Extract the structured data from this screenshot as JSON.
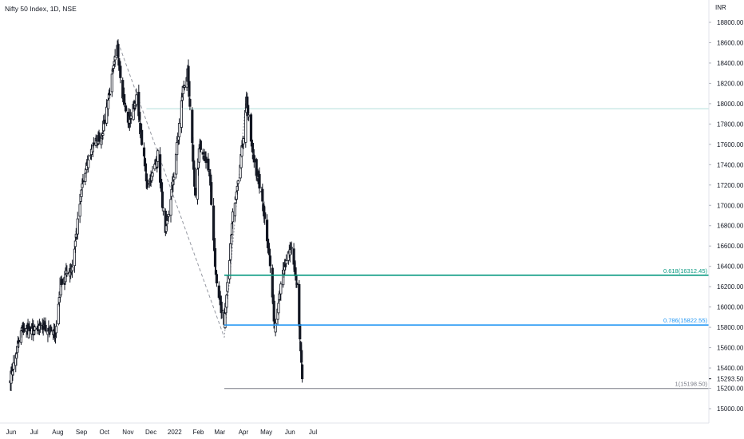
{
  "header": {
    "title": "Nifty 50 Index, 1D, NSE"
  },
  "chart_data": {
    "type": "candlestick",
    "title": "Nifty 50 Index, 1D, NSE",
    "currency": "INR",
    "ylim": [
      15000,
      18900
    ],
    "y_ticks": [
      15000,
      15200,
      15400,
      15600,
      15800,
      16000,
      16200,
      16400,
      16600,
      16800,
      17000,
      17200,
      17400,
      17600,
      17800,
      18000,
      18200,
      18400,
      18600,
      18800
    ],
    "y_tick_labels": [
      "15000.00",
      "15200.00",
      "15400.00",
      "15600.00",
      "15800.00",
      "16000.00",
      "16200.00",
      "16400.00",
      "16600.00",
      "16800.00",
      "17000.00",
      "17200.00",
      "17400.00",
      "17600.00",
      "17800.00",
      "18000.00",
      "18200.00",
      "18400.00",
      "18600.00",
      "18800.00"
    ],
    "x_labels": [
      "Jun",
      "Jul",
      "Aug",
      "Sep",
      "Oct",
      "Nov",
      "Dec",
      "2022",
      "Feb",
      "Mar",
      "Apr",
      "May",
      "Jun",
      "Jul"
    ],
    "last_price_label": "15293.50",
    "last_price": 15293.5,
    "horizontal_reference_line": 17950,
    "fib_levels": [
      {
        "label": "0.618(16312.45)",
        "value": 16312.45,
        "color": "#089981"
      },
      {
        "label": "0.786(15822.55)",
        "value": 15822.55,
        "color": "#2196f3"
      },
      {
        "label": "1(15198.50)",
        "value": 15198.5,
        "color": "#787b86"
      }
    ],
    "trend_line": {
      "from_price": 18604,
      "to_price": 15700
    },
    "projection_line": {
      "from_price": 15700,
      "to_price": 18100
    },
    "anchor_closes": [
      {
        "date": "2021-05-31",
        "price": 15300
      },
      {
        "date": "2021-06-15",
        "price": 15780
      },
      {
        "date": "2021-06-30",
        "price": 15760
      },
      {
        "date": "2021-07-15",
        "price": 15800
      },
      {
        "date": "2021-07-29",
        "price": 15730
      },
      {
        "date": "2021-08-05",
        "price": 16250
      },
      {
        "date": "2021-08-20",
        "price": 16400
      },
      {
        "date": "2021-09-02",
        "price": 17200
      },
      {
        "date": "2021-09-16",
        "price": 17600
      },
      {
        "date": "2021-09-28",
        "price": 17700
      },
      {
        "date": "2021-10-18",
        "price": 18550
      },
      {
        "date": "2021-10-25",
        "price": 18100
      },
      {
        "date": "2021-11-01",
        "price": 17800
      },
      {
        "date": "2021-11-12",
        "price": 18050
      },
      {
        "date": "2021-11-26",
        "price": 17200
      },
      {
        "date": "2021-12-03",
        "price": 17300
      },
      {
        "date": "2021-12-10",
        "price": 17500
      },
      {
        "date": "2021-12-20",
        "price": 16700
      },
      {
        "date": "2021-12-31",
        "price": 17300
      },
      {
        "date": "2022-01-12",
        "price": 18150
      },
      {
        "date": "2022-01-18",
        "price": 18300
      },
      {
        "date": "2022-01-28",
        "price": 17100
      },
      {
        "date": "2022-02-03",
        "price": 17600
      },
      {
        "date": "2022-02-16",
        "price": 17300
      },
      {
        "date": "2022-02-24",
        "price": 16300
      },
      {
        "date": "2022-03-07",
        "price": 15800
      },
      {
        "date": "2022-03-18",
        "price": 16900
      },
      {
        "date": "2022-03-31",
        "price": 17600
      },
      {
        "date": "2022-04-05",
        "price": 18050
      },
      {
        "date": "2022-04-13",
        "price": 17500
      },
      {
        "date": "2022-04-25",
        "price": 17100
      },
      {
        "date": "2022-05-05",
        "price": 16500
      },
      {
        "date": "2022-05-12",
        "price": 15800
      },
      {
        "date": "2022-05-20",
        "price": 16250
      },
      {
        "date": "2022-06-03",
        "price": 16600
      },
      {
        "date": "2022-06-10",
        "price": 16200
      },
      {
        "date": "2022-06-13",
        "price": 15800
      },
      {
        "date": "2022-06-17",
        "price": 15293.5
      }
    ]
  }
}
